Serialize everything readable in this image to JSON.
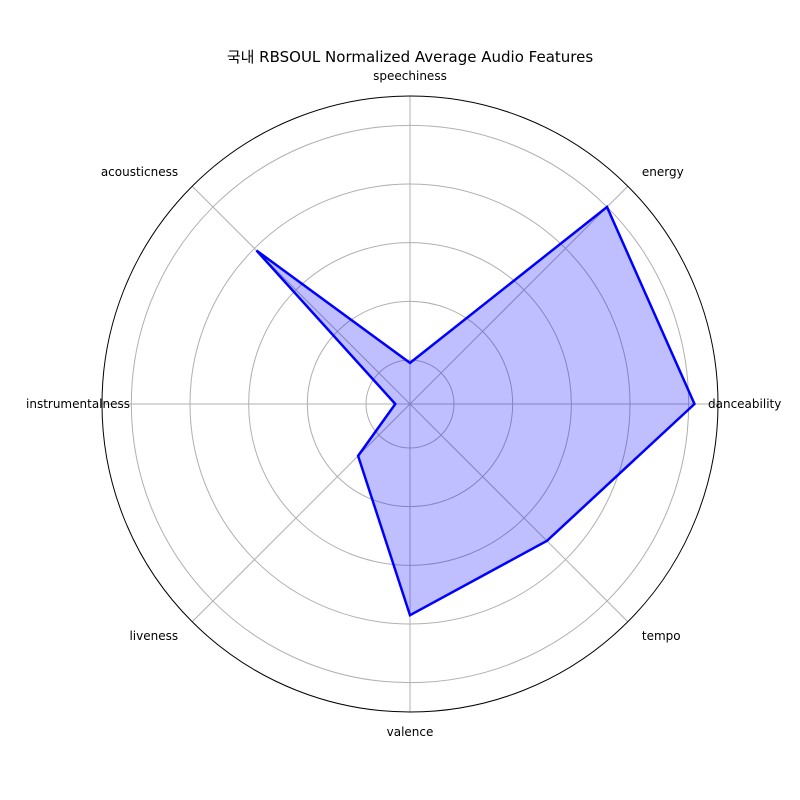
{
  "chart_data": {
    "type": "radar",
    "title": "국내 RBSOUL Normalized Average Audio Features",
    "axes": [
      "danceability",
      "energy",
      "speechiness",
      "acousticness",
      "instrumentalness",
      "liveness",
      "valence",
      "tempo"
    ],
    "values": [
      0.97,
      0.95,
      0.14,
      0.74,
      0.05,
      0.25,
      0.72,
      0.66
    ],
    "rlim": [
      0,
      1.05
    ],
    "grid": true,
    "colors": {
      "line": "#0000ff",
      "fill": "#0000ff"
    }
  }
}
